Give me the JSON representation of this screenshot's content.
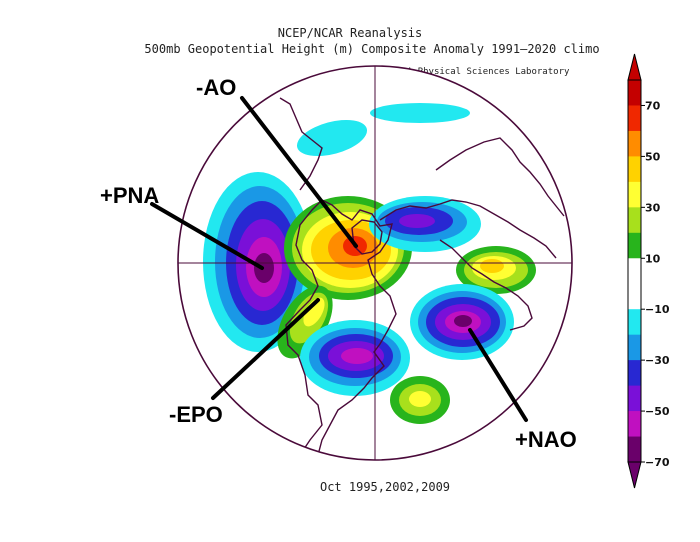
{
  "header": {
    "line1": "NCEP/NCAR Reanalysis",
    "line2": "500mb Geopotential Height (m) Composite Anomaly 1991–2020 climo",
    "credit": "NOAA Physical Sciences Laboratory"
  },
  "footer": {
    "dates": "Oct 1995,2002,2009"
  },
  "annotations": [
    {
      "id": "ao",
      "label": "-AO"
    },
    {
      "id": "pna",
      "label": "+PNA"
    },
    {
      "id": "epo",
      "label": "-EPO"
    },
    {
      "id": "nao",
      "label": "+NAO"
    }
  ],
  "colorbar": {
    "labels": [
      "70",
      "50",
      "30",
      "10",
      "−10",
      "−30",
      "−50",
      "−70"
    ],
    "colors": [
      "#c40000",
      "#f02800",
      "#ff8c00",
      "#ffd200",
      "#ffff33",
      "#a8e01c",
      "#28b41c",
      "#ffffff",
      "#ffffff",
      "#22e8f0",
      "#1a98e6",
      "#2828d2",
      "#7a10d8",
      "#c010c0",
      "#6a006a"
    ]
  },
  "map": {
    "projection": "north polar stereographic",
    "palette": {
      "red": "#f02800",
      "orange": "#ff8c00",
      "gold": "#ffd200",
      "yellow": "#ffff33",
      "ltgreen": "#a8e01c",
      "green": "#28b41c",
      "cyan": "#22e8f0",
      "blue": "#1a98e6",
      "dkblue": "#2828d2",
      "violet": "#7a10d8",
      "magenta": "#c010c0",
      "purple": "#6a006a",
      "coast": "#4a0a3a"
    }
  }
}
